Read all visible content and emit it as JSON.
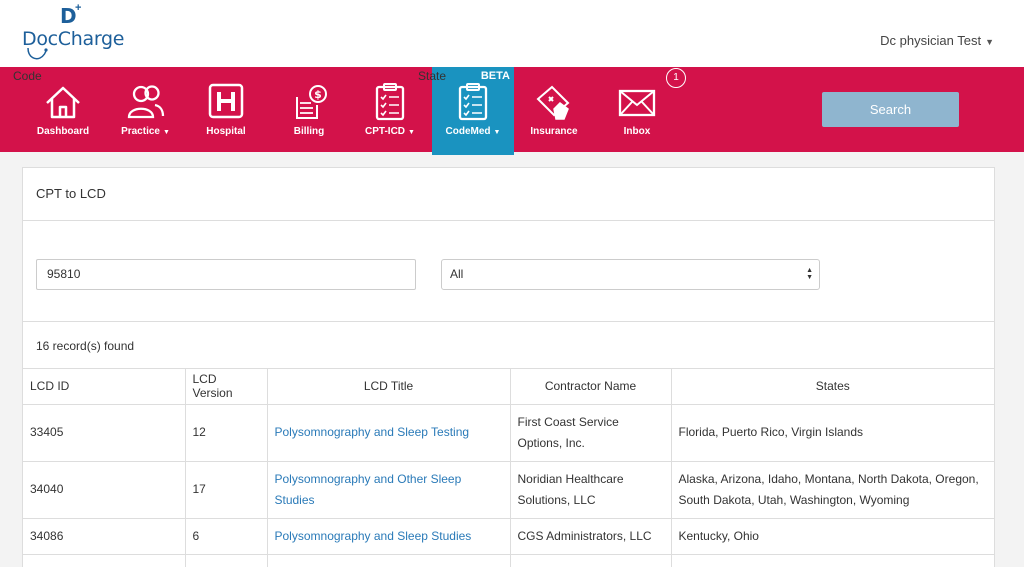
{
  "brand": {
    "name": "DocCharge",
    "letter": "D",
    "plus": "+"
  },
  "user": {
    "name": "Dc physician Test"
  },
  "nav": {
    "items": [
      {
        "label": "Dashboard"
      },
      {
        "label": "Practice"
      },
      {
        "label": "Hospital"
      },
      {
        "label": "Billing"
      },
      {
        "label": "CPT-ICD"
      },
      {
        "label": "CodeMed",
        "badge": "BETA",
        "active": true
      },
      {
        "label": "Insurance"
      },
      {
        "label": "Inbox",
        "count": "1"
      }
    ]
  },
  "panel": {
    "title": "CPT to LCD",
    "code_label": "Code",
    "code_value": "95810",
    "state_label": "State",
    "state_value": "All",
    "search_label": "Search",
    "records": "16 record(s) found"
  },
  "table": {
    "headers": [
      "LCD ID",
      "LCD Version",
      "LCD Title",
      "Contractor Name",
      "States"
    ],
    "rows": [
      {
        "id": "33405",
        "version": "12",
        "title": "Polysomnography and Sleep Testing",
        "contractor": "First Coast Service Options, Inc.",
        "states": "Florida, Puerto Rico, Virgin Islands"
      },
      {
        "id": "34040",
        "version": "17",
        "title": "Polysomnography and Other Sleep Studies",
        "contractor": "Noridian Healthcare Solutions, LLC",
        "states": "Alaska, Arizona, Idaho, Montana, North Dakota, Oregon, South Dakota, Utah, Washington, Wyoming"
      },
      {
        "id": "34086",
        "version": "6",
        "title": "Polysomnography and Sleep Studies",
        "contractor": "CGS Administrators, LLC",
        "states": "Kentucky, Ohio"
      }
    ]
  },
  "colors": {
    "nav_bg": "#d3124a",
    "nav_active": "#1a93c0",
    "brand": "#1d5f9a",
    "link": "#2a7ab8",
    "button": "#8fb5cf"
  }
}
